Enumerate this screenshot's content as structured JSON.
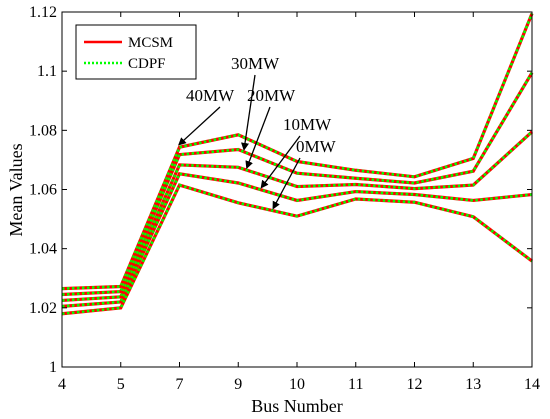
{
  "chart_data": {
    "type": "line",
    "categories": [
      "4",
      "5",
      "7",
      "9",
      "10",
      "11",
      "12",
      "13",
      "14"
    ],
    "xlabel": "Bus Number",
    "ylabel": "Mean Values",
    "ylim": [
      1,
      1.12
    ],
    "yticks": [
      "1",
      "1.02",
      "1.04",
      "1.06",
      "1.08",
      "1.1",
      "1.12"
    ],
    "grid": false,
    "legend": {
      "placement": "top-left",
      "entries": [
        {
          "name": "MCSM",
          "color": "#ff0000",
          "style": "solid"
        },
        {
          "name": "CDPF",
          "color": "#00ff00",
          "style": "dotted"
        }
      ]
    },
    "lines": [
      {
        "label": "40MW",
        "values": [
          1.0265,
          1.0272,
          1.0743,
          1.0785,
          1.0695,
          1.0665,
          1.0643,
          1.0705,
          1.1195
        ]
      },
      {
        "label": "30MW",
        "values": [
          1.0245,
          1.0255,
          1.0718,
          1.0735,
          1.0655,
          1.0638,
          1.0622,
          1.0662,
          1.0995
        ]
      },
      {
        "label": "20MW",
        "values": [
          1.0225,
          1.0237,
          1.0683,
          1.0675,
          1.061,
          1.0617,
          1.0603,
          1.0615,
          1.0795
        ]
      },
      {
        "label": "10MW",
        "values": [
          1.0205,
          1.022,
          1.0653,
          1.0622,
          1.0563,
          1.0593,
          1.0583,
          1.0563,
          1.0583
        ]
      },
      {
        "label": "0MW",
        "values": [
          1.018,
          1.02,
          1.0615,
          1.0555,
          1.051,
          1.0568,
          1.0557,
          1.0508,
          1.0358
        ]
      }
    ],
    "annotations": [
      {
        "text": "40MW",
        "points_to_line": "40MW",
        "at_category": "7"
      },
      {
        "text": "30MW",
        "points_to_line": "30MW",
        "at_category": "9"
      },
      {
        "text": "20MW",
        "points_to_line": "20MW",
        "at_category": "9"
      },
      {
        "text": "10MW",
        "points_to_line": "10MW",
        "at_category": "9"
      },
      {
        "text": "0MW",
        "points_to_line": "0MW",
        "at_category": "9"
      }
    ]
  }
}
